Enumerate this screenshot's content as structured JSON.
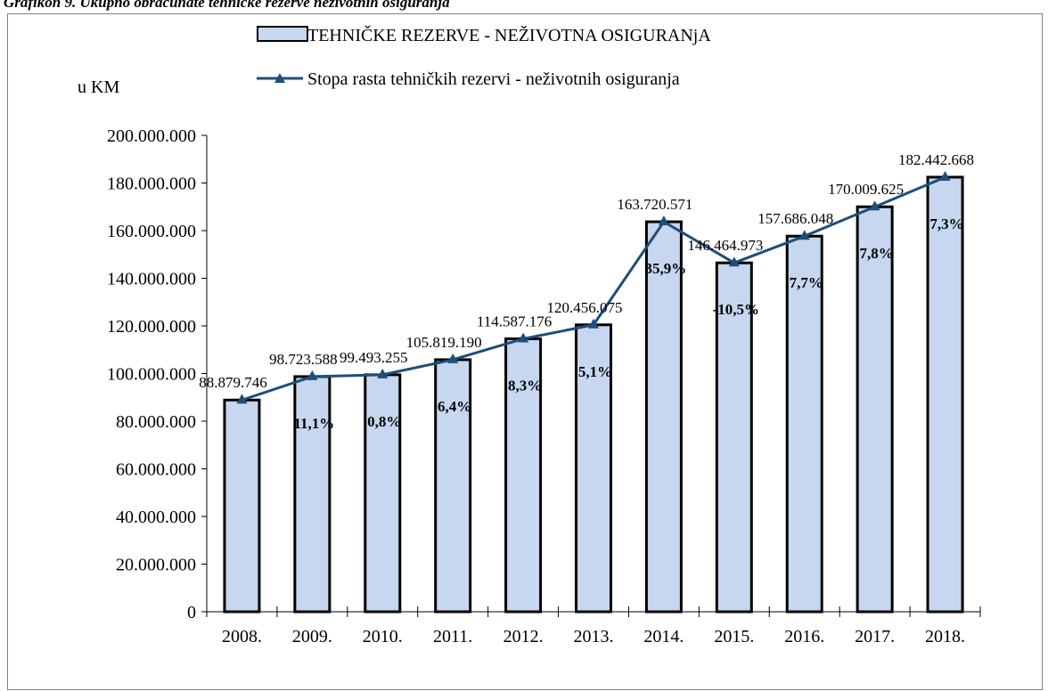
{
  "caption": "Grafikon 9. Ukupno obračunate tehničke rezerve neživotnih osiguranja",
  "colors": {
    "bar_fill": "#c6d7ef",
    "bar_stroke": "#000000",
    "line": "#1f4e79",
    "marker": "#1f4e79"
  },
  "chart_data": {
    "type": "bar",
    "title": "",
    "unit_label": "u KM",
    "categories": [
      "2008.",
      "2009.",
      "2010.",
      "2011.",
      "2012.",
      "2013.",
      "2014.",
      "2015.",
      "2016.",
      "2017.",
      "2018."
    ],
    "series": [
      {
        "name": "TEHNIČKE REZERVE - NEŽIVOTNA OSIGURANjA",
        "type": "bar",
        "values": [
          88879746,
          98723588,
          99493255,
          105819190,
          114587176,
          120456075,
          163720571,
          146464973,
          157686048,
          170009625,
          182442668
        ],
        "labels": [
          "88.879.746",
          "98.723.588",
          "99.493.255",
          "105.819.190",
          "114.587.176",
          "120.456.075",
          "163.720.571",
          "146.464.973",
          "157.686.048",
          "170.009.625",
          "182.442.668"
        ]
      },
      {
        "name": "Stopa rasta tehničkih rezervi - neživotnih osiguranja",
        "type": "line",
        "marker": "triangle",
        "values": [
          null,
          11.1,
          0.8,
          6.4,
          8.3,
          5.1,
          35.9,
          -10.5,
          7.7,
          7.8,
          7.3
        ],
        "labels": [
          "",
          "11,1%",
          "0,8%",
          "6,4%",
          "8,3%",
          "5,1%",
          "35,9%",
          "-10,5%",
          "7,7%",
          "7,8%",
          "7,3%"
        ]
      }
    ],
    "ylim": [
      0,
      200000000
    ],
    "yticks": [
      0,
      20000000,
      40000000,
      60000000,
      80000000,
      100000000,
      120000000,
      140000000,
      160000000,
      180000000,
      200000000
    ],
    "ytick_labels": [
      "0",
      "20.000.000",
      "40.000.000",
      "60.000.000",
      "80.000.000",
      "100.000.000",
      "120.000.000",
      "140.000.000",
      "160.000.000",
      "180.000.000",
      "200.000.000"
    ],
    "grid": false,
    "legend": "top-center"
  }
}
